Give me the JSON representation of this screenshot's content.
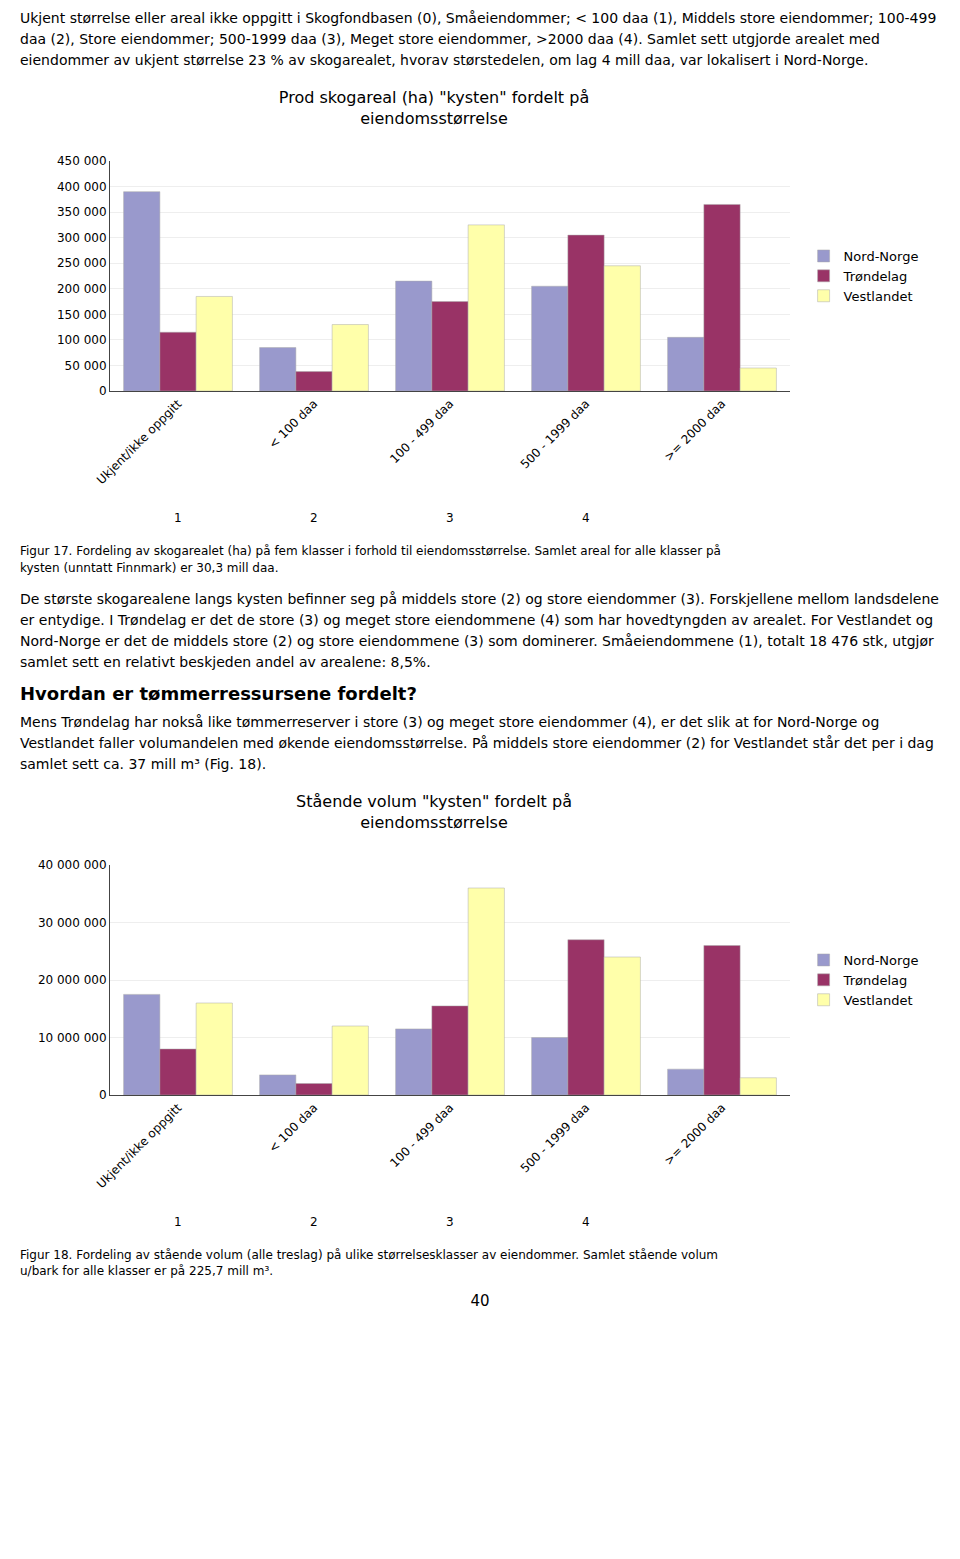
{
  "intro_text": "Ukjent størrelse eller areal ikke oppgitt i Skogfondbasen (0), Småeiendommer; < 100 daa (1), Middels store eiendommer; 100-499 daa (2), Store eiendommer; 500-1999 daa (3), Meget store eiendommer, >2000 daa (4).  Samlet sett utgjorde arealet med eiendommer av ukjent størrelse 23 % av skogarealet, hvorav størstedelen, om lag 4 mill daa, var lokalisert i Nord-Norge.",
  "between_text1": "De største skogarealene langs kysten befinner seg på middels store (2) og store eiendommer (3). Forskjellene mellom landsdelene er entydige. I Trøndelag er det de store (3) og meget store eiendommene (4) som har hovedtyngden av arealet. For Vestlandet og Nord-Norge er det de middels store (2) og store eiendommene (3) som dominerer. Småeiendommene (1), totalt 18 476 stk, utgjør samlet sett en relativt beskjeden andel av arealene: 8,5%.",
  "heading": "Hvordan er tømmerressursene fordelt?",
  "between_text3": "Mens Trøndelag har nokså like tømmerreserver i store (3) og meget store eiendommer (4), er det slik at for Nord-Norge og Vestlandet faller volumandelen med økende eiendomsstørrelse. På middels store eiendommer (2) for Vestlandet står det per i dag samlet sett ca. 37 mill m³ (Fig. 18).",
  "page_number": "40",
  "chart_data": [
    {
      "type": "bar",
      "title": "Prod skogareal (ha) \"kysten\" fordelt på\neiendomsstørrelse",
      "caption": "Figur 17. Fordeling av skogarealet (ha) på fem klasser i forhold til eiendomsstørrelse.  Samlet areal for alle klasser på\nkysten (unntatt Finnmark) er 30,3 mill daa.",
      "categories": [
        "Ukjent/ikke oppgitt",
        "< 100 daa",
        "100 - 499 daa",
        "500 - 1999 daa",
        ">= 2000 daa"
      ],
      "annotations": [
        {
          "category": "Ukjent/ikke oppgitt",
          "text": "1"
        },
        {
          "category": "< 100 daa",
          "text": "2"
        },
        {
          "category": "100 - 499 daa",
          "text": "3"
        },
        {
          "category": "500 - 1999 daa",
          "text": "4"
        }
      ],
      "series": [
        {
          "name": "Nord-Norge",
          "color": "#9999cc",
          "values": [
            390000,
            85000,
            215000,
            205000,
            105000
          ]
        },
        {
          "name": "Trøndelag",
          "color": "#993366",
          "values": [
            115000,
            38000,
            175000,
            305000,
            365000
          ]
        },
        {
          "name": "Vestlandet",
          "color": "#ffffaa",
          "values": [
            185000,
            130000,
            325000,
            245000,
            45000
          ]
        }
      ],
      "ylim": [
        0,
        450000
      ],
      "yticks": [
        0,
        {
          "value": 50000,
          "label": "50 000"
        },
        {
          "value": 100000,
          "label": "100 000"
        },
        {
          "value": 150000,
          "label": "150 000"
        },
        {
          "value": 200000,
          "label": "200 000"
        },
        {
          "value": 250000,
          "label": "250 000"
        },
        {
          "value": 300000,
          "label": "300 000"
        },
        {
          "value": 350000,
          "label": "350 000"
        },
        {
          "value": 400000,
          "label": "400 000"
        },
        {
          "value": 450000,
          "label": "450 000"
        }
      ],
      "grid": true,
      "legend": "right"
    },
    {
      "type": "bar",
      "title": "Stående volum \"kysten\" fordelt på\neiendomsstørrelse",
      "caption": "Figur 18. Fordeling av stående volum (alle treslag) på ulike størrelsesklasser av eiendommer.  Samlet stående volum\nu/bark for alle klasser er på 225,7 mill m³.",
      "categories": [
        "Ukjent/ikke oppgitt",
        "< 100 daa",
        "100 - 499 daa",
        "500 - 1999 daa",
        ">= 2000 daa"
      ],
      "annotations": [
        {
          "category": "Ukjent/ikke oppgitt",
          "text": "1"
        },
        {
          "category": "< 100 daa",
          "text": "2"
        },
        {
          "category": "100 - 499 daa",
          "text": "3"
        },
        {
          "category": "500 - 1999 daa",
          "text": "4"
        }
      ],
      "series": [
        {
          "name": "Nord-Norge",
          "color": "#9999cc",
          "values": [
            17500000,
            3500000,
            11500000,
            10000000,
            4500000
          ]
        },
        {
          "name": "Trøndelag",
          "color": "#993366",
          "values": [
            8000000,
            2000000,
            15500000,
            27000000,
            26000000
          ]
        },
        {
          "name": "Vestlandet",
          "color": "#ffffaa",
          "values": [
            16000000,
            12000000,
            36000000,
            24000000,
            3000000
          ]
        }
      ],
      "ylim": [
        0,
        40000000
      ],
      "yticks": [
        0,
        {
          "value": 10000000,
          "label": "10 000 000"
        },
        {
          "value": 20000000,
          "label": "20 000 000"
        },
        {
          "value": 30000000,
          "label": "30 000 000"
        },
        {
          "value": 40000000,
          "label": "40 000 000"
        }
      ],
      "grid": true,
      "legend": "right"
    }
  ]
}
